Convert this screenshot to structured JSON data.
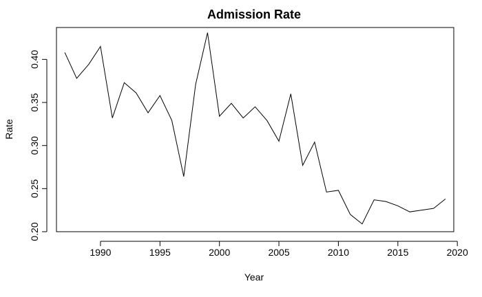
{
  "chart_data": {
    "type": "line",
    "title": "Admission Rate",
    "xlabel": "Year",
    "ylabel": "Rate",
    "xlim": [
      1986.3,
      2019.7
    ],
    "ylim": [
      0.2,
      0.437
    ],
    "grid": false,
    "x_ticks": [
      1990,
      1995,
      2000,
      2005,
      2010,
      2015,
      2020
    ],
    "x_tick_labels": [
      "1990",
      "1995",
      "2000",
      "2005",
      "2010",
      "2015",
      "2020"
    ],
    "y_ticks": [
      0.2,
      0.25,
      0.3,
      0.35,
      0.4
    ],
    "y_tick_labels": [
      "0.20",
      "0.25",
      "0.30",
      "0.35",
      "0.40"
    ],
    "series": [
      {
        "color": "#000000",
        "x": [
          1987,
          1988,
          1989,
          1990,
          1991,
          1992,
          1993,
          1994,
          1995,
          1996,
          1997,
          1998,
          1999,
          2000,
          2001,
          2002,
          2003,
          2004,
          2005,
          2006,
          2007,
          2008,
          2009,
          2010,
          2011,
          2012,
          2013,
          2014,
          2015,
          2016,
          2017,
          2018,
          2019
        ],
        "values": [
          0.408,
          0.378,
          0.394,
          0.415,
          0.332,
          0.373,
          0.361,
          0.338,
          0.358,
          0.329,
          0.264,
          0.371,
          0.431,
          0.334,
          0.349,
          0.332,
          0.345,
          0.329,
          0.305,
          0.36,
          0.277,
          0.304,
          0.246,
          0.248,
          0.22,
          0.209,
          0.237,
          0.235,
          0.23,
          0.223,
          0.225,
          0.227,
          0.238
        ]
      }
    ]
  }
}
